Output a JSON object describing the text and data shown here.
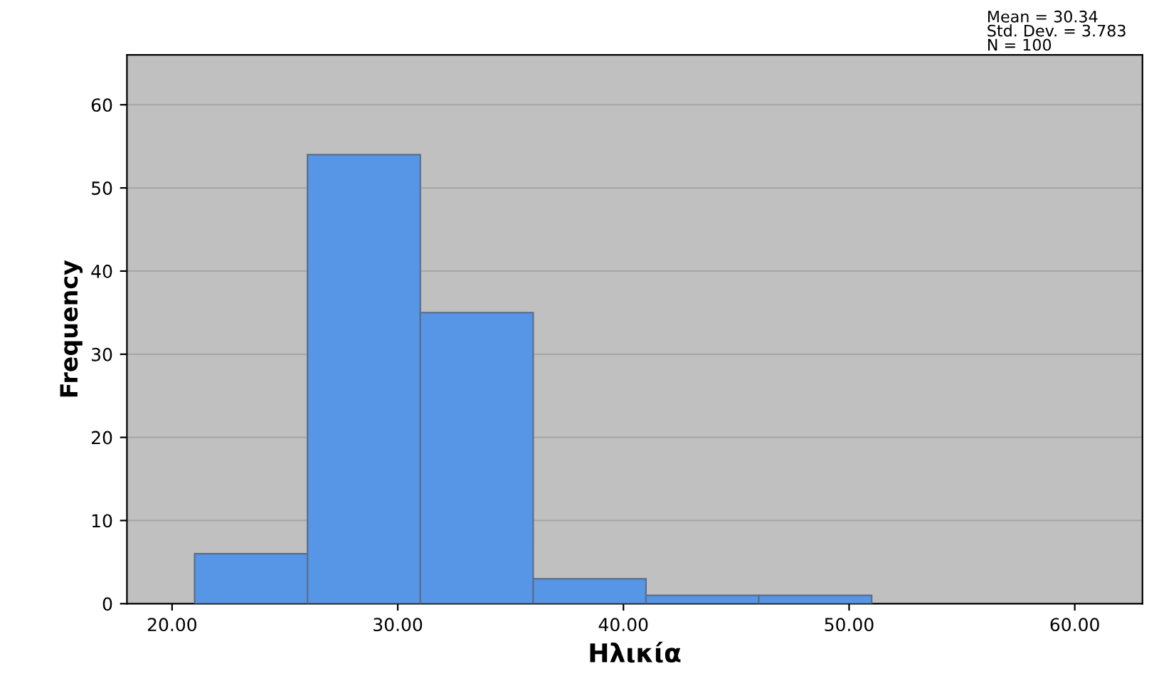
{
  "chart_data": {
    "type": "histogram",
    "xlabel": "Ηλικία",
    "ylabel": "Frequency",
    "bins": [
      21,
      26,
      31,
      36,
      41,
      46,
      51
    ],
    "values": [
      6,
      54,
      35,
      3,
      1,
      1
    ],
    "color": "#5796e6",
    "xlim": [
      18,
      63
    ],
    "xticks": [
      {
        "value": 20,
        "label": "20.00"
      },
      {
        "value": 30,
        "label": "30.00"
      },
      {
        "value": 40,
        "label": "40.00"
      },
      {
        "value": 50,
        "label": "50.00"
      },
      {
        "value": 60,
        "label": "60.00"
      }
    ],
    "ylim": [
      0,
      66
    ],
    "yticks": [
      0,
      10,
      20,
      30,
      40,
      50,
      60
    ],
    "grid": "y",
    "annotations": [
      "Mean = 30.34\nStd. Dev. = 3.783\nN = 100"
    ]
  }
}
